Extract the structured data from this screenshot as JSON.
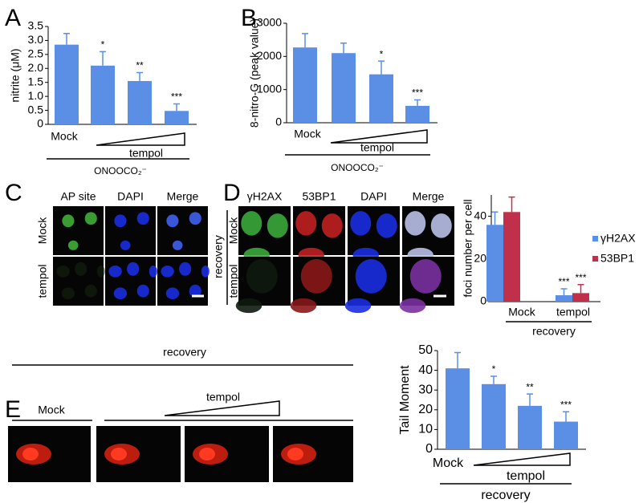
{
  "panel_letters": [
    "A",
    "B",
    "C",
    "D",
    "E"
  ],
  "panel_C": {
    "columns": [
      "AP site",
      "DAPI",
      "Merge"
    ],
    "rows": [
      "Mock",
      "tempol"
    ]
  },
  "panel_D": {
    "columns": [
      "γH2AX",
      "53BP1",
      "DAPI",
      "Merge"
    ],
    "rows": [
      "Mock",
      "tempol"
    ],
    "group": "recovery"
  },
  "panel_E": {
    "group": "recovery",
    "control": "Mock",
    "treatment": "tempol"
  },
  "chart_data": [
    {
      "type": "bar",
      "y_label": "nitrite (μM)",
      "categories": [
        "Mock",
        null,
        null,
        null
      ],
      "values": [
        2.85,
        2.1,
        1.55,
        0.48
      ],
      "errors": [
        0.4,
        0.5,
        0.3,
        0.25
      ],
      "significance": [
        null,
        "*",
        "**",
        "***"
      ],
      "color": "#5b8fe6",
      "ylim": [
        0,
        3.5
      ],
      "yticks": [
        0,
        0.5,
        {
          "value": 1,
          "label": "1.0"
        },
        1.5,
        {
          "value": 2,
          "label": "2.0"
        },
        2.5,
        {
          "value": 3,
          "label": "3.0"
        },
        3.5
      ],
      "dose_label": "tempol",
      "group_label": "ONOOCO₂⁻"
    },
    {
      "type": "bar",
      "y_label": "8-nitro-G (peak value)",
      "categories": [
        "Mock",
        null,
        null,
        null
      ],
      "values": [
        2270,
        2100,
        1460,
        510
      ],
      "errors": [
        420,
        300,
        400,
        180
      ],
      "significance": [
        null,
        null,
        "*",
        "***"
      ],
      "color": "#5b8fe6",
      "ylim": [
        0,
        3000
      ],
      "yticks": [
        0,
        1000,
        2000,
        3000
      ],
      "dose_label": "tempol",
      "group_label": "ONOOCO₂⁻"
    },
    {
      "type": "bar",
      "y_label": "foci number per cell",
      "categories": [
        "Mock",
        "tempol"
      ],
      "series": [
        {
          "name": "γH2AX",
          "color": "#5b8fe6",
          "values": [
            36,
            3
          ],
          "errors": [
            6,
            3
          ],
          "significance": [
            null,
            "***"
          ]
        },
        {
          "name": "53BP1",
          "color": "#c0304a",
          "values": [
            42,
            4
          ],
          "errors": [
            7,
            4
          ],
          "significance": [
            null,
            "***"
          ]
        }
      ],
      "ylim": [
        0,
        50
      ],
      "yticks": [
        0,
        20,
        40
      ],
      "group_label": "recovery",
      "legend": "right"
    },
    {
      "type": "bar",
      "y_label": "Tail Moment",
      "categories": [
        "Mock",
        null,
        null,
        null
      ],
      "values": [
        41,
        33,
        22,
        14
      ],
      "errors": [
        8,
        4,
        6,
        5
      ],
      "significance": [
        null,
        "*",
        "**",
        "***"
      ],
      "color": "#5b8fe6",
      "ylim": [
        0,
        50
      ],
      "yticks": [
        0,
        10,
        20,
        30,
        40,
        50
      ],
      "dose_label": "tempol",
      "group_label": "recovery"
    }
  ]
}
